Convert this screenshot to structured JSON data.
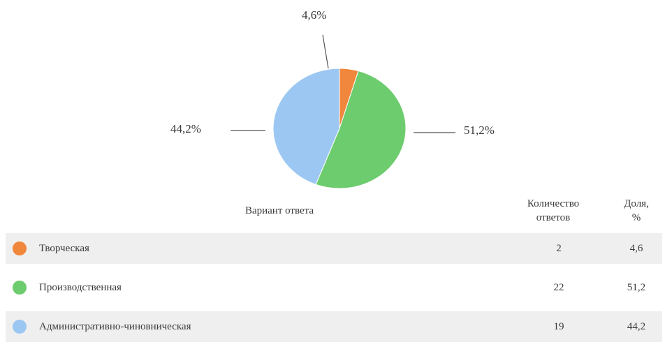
{
  "chart_data": {
    "type": "pie",
    "slices": [
      {
        "label": "Творческая",
        "value": 4.6,
        "display": "4,6%",
        "color": "#f0873c"
      },
      {
        "label": "Производственная",
        "value": 51.2,
        "display": "51,2%",
        "color": "#6dcc6d"
      },
      {
        "label": "Административно-чиновничеcкая",
        "value": 44.2,
        "display": "44,2%",
        "color": "#9cc7f2"
      }
    ]
  },
  "table": {
    "headers": {
      "variant": "Вариант ответа",
      "count_line1": "Количество",
      "count_line2": "ответов",
      "share_line1": "Доля,",
      "share_line2": "%"
    },
    "rows": [
      {
        "label": "Творческая",
        "count": "2",
        "share": "4,6",
        "color": "#f0873c"
      },
      {
        "label": "Производственная",
        "count": "22",
        "share": "51,2",
        "color": "#6dcc6d"
      },
      {
        "label": "Административно-чиновническая",
        "count": "19",
        "share": "44,2",
        "color": "#9cc7f2"
      }
    ]
  }
}
